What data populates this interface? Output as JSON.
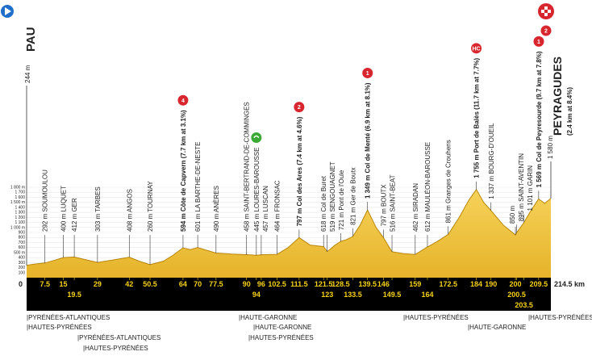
{
  "chart_data": {
    "type": "area",
    "color": "#f2c230",
    "xlim": [
      0,
      214.5
    ],
    "ylim": [
      0,
      1800
    ],
    "grid": true,
    "x": [
      0,
      3,
      7.5,
      11,
      15,
      19.5,
      24,
      29,
      35,
      42,
      46,
      50.5,
      56,
      60,
      64,
      67,
      70,
      74,
      77.5,
      84,
      90,
      94,
      96,
      99,
      102.5,
      107,
      111.5,
      116,
      121.5,
      123,
      126,
      128.5,
      131,
      133.5,
      136.5,
      139.5,
      143,
      146,
      149.5,
      154,
      159,
      164,
      168,
      172.5,
      177,
      181,
      184,
      187,
      190,
      195,
      200,
      200.5,
      203.5,
      206.5,
      209.5,
      212,
      214.5
    ],
    "values": [
      244,
      270,
      292,
      340,
      400,
      412,
      360,
      303,
      350,
      408,
      330,
      260,
      330,
      450,
      594,
      560,
      601,
      540,
      490,
      470,
      458,
      445,
      457,
      460,
      464,
      600,
      797,
      650,
      618,
      519,
      640,
      721,
      760,
      821,
      1050,
      1349,
      1000,
      797,
      516,
      480,
      462,
      612,
      720,
      861,
      1200,
      1550,
      1755,
      1500,
      1337,
      1050,
      850,
      895,
      1101,
      1350,
      1569,
      1480,
      1580
    ],
    "yticks": [
      100,
      200,
      300,
      400,
      {
        "value": 500,
        "label": "500 m"
      },
      600,
      700,
      800,
      900,
      {
        "value": 1000,
        "label": "1 000 m"
      },
      {
        "value": 1100,
        "label": "1 100"
      },
      {
        "value": 1200,
        "label": "1 200"
      },
      {
        "value": 1300,
        "label": "1 300"
      },
      {
        "value": 1400,
        "label": "1 400"
      },
      {
        "value": 1500,
        "label": "1 500 m"
      },
      {
        "value": 1600,
        "label": "1 600"
      },
      {
        "value": 1700,
        "label": "1 700"
      },
      {
        "value": 1800,
        "label": "1 800 m"
      }
    ],
    "xticks": [
      0,
      7.5,
      15,
      19.5,
      29,
      42,
      50.5,
      64,
      70,
      77.5,
      90,
      94,
      96,
      102.5,
      111.5,
      121.5,
      123,
      128.5,
      133.5,
      139.5,
      146,
      149.5,
      159,
      164,
      172.5,
      184,
      190,
      200,
      200.5,
      203.5,
      209.5,
      {
        "value": 214.5,
        "label": "214.5 km"
      }
    ],
    "start": {
      "name": "PAU",
      "altitude": "244 m"
    },
    "finish": {
      "name": "PEYRAGUDES",
      "note": "(2.4 km at 8.4%)",
      "altitude": "1 580 m",
      "category": "2"
    },
    "places": [
      {
        "km": 7.5,
        "label": "292 m SOUMOULOU"
      },
      {
        "km": 15,
        "label": "400 m LUQUET"
      },
      {
        "km": 19.5,
        "label": "412 m GER"
      },
      {
        "km": 29,
        "label": "303 m TARBES"
      },
      {
        "km": 42,
        "label": "408 m ANGOS"
      },
      {
        "km": 50.5,
        "label": "260 m TOURNAY"
      },
      {
        "km": 64,
        "label": "594 m Côte de Capvern (7.7 km at 3.1%)",
        "category": "4"
      },
      {
        "km": 70,
        "label": "601 m LA BARTHE-DE-NESTE"
      },
      {
        "km": 77.5,
        "label": "490 m ANÈRES"
      },
      {
        "km": 90,
        "label": "458 m SAINT-BERTRAND-DE-COMMINGES"
      },
      {
        "km": 94,
        "label": "445 m LOURES-BAROUSSE",
        "sprint": true
      },
      {
        "km": 96,
        "label": "457 m LUSCAN"
      },
      {
        "km": 102.5,
        "label": "464 m FRONSAC"
      },
      {
        "km": 111.5,
        "label": "797 m Col des Ares (7.4 km at 4.6%)",
        "category": "2"
      },
      {
        "km": 121.5,
        "label": "618 m Col de Buret"
      },
      {
        "km": 123,
        "label": "519 m SENGOUAGNET"
      },
      {
        "km": 128.5,
        "label": "721 m Pont de l'Oule"
      },
      {
        "km": 133.5,
        "label": "821 m Ger de Boutx"
      },
      {
        "km": 139.5,
        "label": "1 349 m Col de Menté (6.9 km at 8.1%)",
        "category": "1"
      },
      {
        "km": 146,
        "label": "797 m BOUTX"
      },
      {
        "km": 149.5,
        "label": "516 m SAINT-BEAT"
      },
      {
        "km": 159,
        "label": "462 m SIRADAN"
      },
      {
        "km": 164,
        "label": "612 m MAULÉON-BAROUSSE"
      },
      {
        "km": 172.5,
        "label": "861 m Granges de Crouhens"
      },
      {
        "km": 184,
        "label": "1 755 m Port de Balès (11.7 km at 7.7%)",
        "category": "HC"
      },
      {
        "km": 190,
        "label": "1 337 m BOURG-D'OUEIL"
      },
      {
        "km": 200,
        "label": "850 m"
      },
      {
        "km": 200.5,
        "label": "895 m SAINT-AVENTIN"
      },
      {
        "km": 203.5,
        "label": "1 101 m GARIN"
      },
      {
        "km": 209.5,
        "label": "1 569 m Col de Peyresourde (9.7 km at 7.8%)",
        "category": "1"
      }
    ],
    "regions": [
      "|PYRÉNÉES-ATLANTIQUES",
      "|HAUTES-PYRÉNÉES",
      "|PYRÉNÉES-ATLANTIQUES",
      "|HAUTES-PYRÉNÉES",
      "|HAUTE-GARONNE",
      "|HAUTE-GARONNE",
      "|HAUTES-PYRÉNÉES",
      "|HAUTES-PYRÉNÉES",
      "|HAUTE-GARONNE",
      "|HAUTES-PYRÉNÉES"
    ]
  }
}
